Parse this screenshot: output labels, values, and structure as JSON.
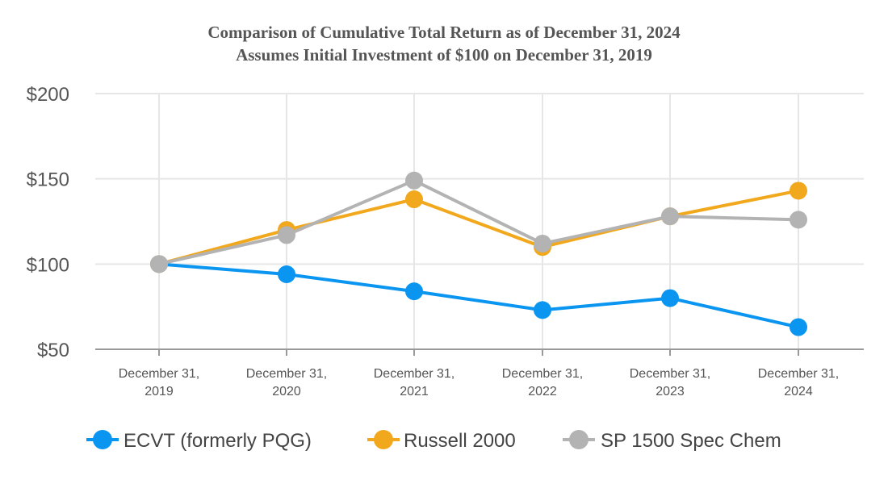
{
  "chart_data": {
    "type": "line",
    "title": "Comparison of Cumulative Total Return as of December 31, 2024",
    "subtitle": "Assumes Initial Investment of $100 on December 31, 2019",
    "x_tick_labels": [
      [
        "December 31,",
        "2019"
      ],
      [
        "December 31,",
        "2020"
      ],
      [
        "December 31,",
        "2021"
      ],
      [
        "December 31,",
        "2022"
      ],
      [
        "December 31,",
        "2023"
      ],
      [
        "December 31,",
        "2024"
      ]
    ],
    "y_tick_labels": [
      "$200",
      "$150",
      "$100",
      "$50"
    ],
    "y_ticks": [
      200,
      150,
      100,
      50
    ],
    "ylim": [
      50,
      200
    ],
    "grid": true,
    "legend_position": "bottom",
    "series": [
      {
        "name": "ECVT (formerly PQG)",
        "color": "#0a95f0",
        "values": [
          100,
          94,
          84,
          73,
          80,
          63
        ]
      },
      {
        "name": "Russell 2000",
        "color": "#f2a81d",
        "values": [
          100,
          120,
          138,
          110,
          128,
          143
        ]
      },
      {
        "name": "SP 1500 Spec Chem",
        "color": "#b3b3b3",
        "values": [
          100,
          117,
          149,
          112,
          128,
          126
        ]
      }
    ]
  }
}
